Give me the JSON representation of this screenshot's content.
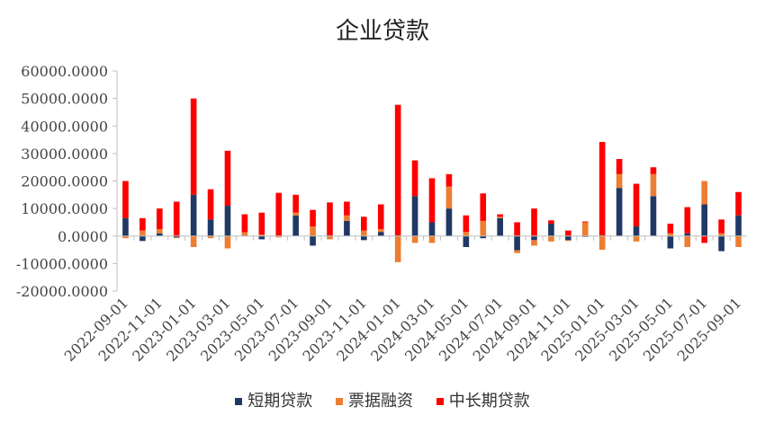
{
  "chart_data": {
    "type": "bar",
    "stacked": true,
    "title": "企业贷款",
    "xlabel": "",
    "ylabel": "",
    "ylim": [
      -20000,
      60000
    ],
    "yticks": [
      -20000,
      -10000,
      0,
      10000,
      20000,
      30000,
      40000,
      50000,
      60000
    ],
    "ytick_labels": [
      "-20000.0000",
      "-10000.0000",
      "0.0000",
      "10000.0000",
      "20000.0000",
      "30000.0000",
      "40000.0000",
      "50000.0000",
      "60000.0000"
    ],
    "grid": false,
    "legend_position": "bottom",
    "categories": [
      "2022-09-01",
      "2022-10-01",
      "2022-11-01",
      "2022-12-01",
      "2023-01-01",
      "2023-02-01",
      "2023-03-01",
      "2023-04-01",
      "2023-05-01",
      "2023-06-01",
      "2023-07-01",
      "2023-08-01",
      "2023-09-01",
      "2023-10-01",
      "2023-11-01",
      "2023-12-01",
      "2024-01-01",
      "2024-02-01",
      "2024-03-01",
      "2024-04-01",
      "2024-05-01",
      "2024-06-01",
      "2024-07-01",
      "2024-08-01",
      "2024-09-01",
      "2024-10-01",
      "2024-11-01",
      "2024-12-01",
      "2025-01-01",
      "2025-02-01",
      "2025-03-01",
      "2025-04-01",
      "2025-05-01",
      "2025-06-01",
      "2025-07-01",
      "2025-08-01",
      "2025-09-01"
    ],
    "xtick_labels": [
      "2022-09-01",
      "2022-11-01",
      "2023-01-01",
      "2023-03-01",
      "2023-05-01",
      "2023-07-01",
      "2023-09-01",
      "2023-11-01",
      "2024-01-01",
      "2024-03-01",
      "2024-05-01",
      "2024-07-01",
      "2024-09-01",
      "2024-11-01",
      "2025-01-01",
      "2025-03-01",
      "2025-05-01",
      "2025-07-01",
      "2025-09-01"
    ],
    "series": [
      {
        "name": "短期贷款",
        "color": "#203864",
        "values": [
          6500,
          -1800,
          1000,
          -500,
          15000,
          6000,
          11000,
          200,
          -1200,
          200,
          7500,
          -3500,
          200,
          5500,
          -1500,
          1500,
          200,
          14500,
          5000,
          10000,
          -4000,
          -800,
          6500,
          -5200,
          -1500,
          4500,
          -1500,
          -300,
          200,
          17500,
          3500,
          14500,
          -4500,
          1000,
          11500,
          -5500,
          7500
        ]
      },
      {
        "name": "票据融资",
        "color": "#ED7D31",
        "values": [
          -800,
          2000,
          1500,
          -300,
          -4000,
          -800,
          -4500,
          1200,
          500,
          -500,
          1000,
          3500,
          -1200,
          2000,
          2000,
          1000,
          -9500,
          -2500,
          -2500,
          8000,
          1500,
          5500,
          500,
          -1000,
          -2000,
          -2000,
          -300,
          5000,
          -5000,
          5000,
          -2000,
          8000,
          1000,
          -4000,
          8500,
          1000,
          -4000
        ]
      },
      {
        "name": "中长期贷款",
        "color": "#FF0000",
        "values": [
          13500,
          4500,
          7500,
          12500,
          35000,
          11000,
          20000,
          6500,
          8000,
          15500,
          6500,
          6000,
          12000,
          5000,
          5000,
          9000,
          47500,
          13000,
          16000,
          4500,
          6000,
          10000,
          900,
          5000,
          10000,
          1200,
          2000,
          300,
          34000,
          5500,
          15500,
          2500,
          3500,
          9500,
          -2500,
          5000,
          8500
        ]
      }
    ]
  }
}
